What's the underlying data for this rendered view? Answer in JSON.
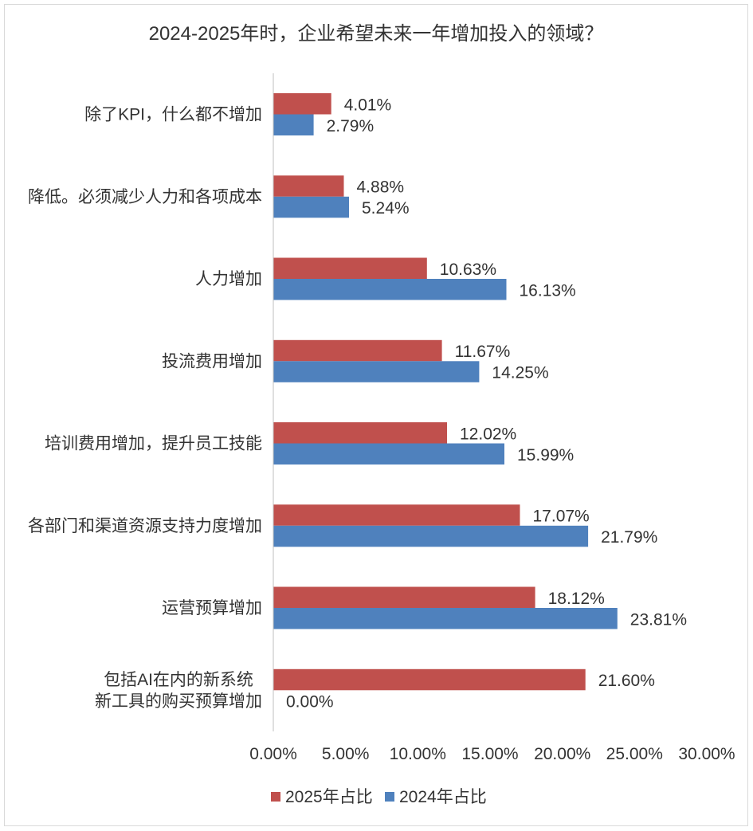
{
  "chart_data": {
    "type": "bar",
    "orientation": "horizontal",
    "title": "2024-2025年时，企业希望未来一年增加投入的领域？",
    "categories": [
      "除了KPI，什么都不增加",
      "降低。必须减少人力和各项成本",
      "人力增加",
      "投流费用增加",
      "培训费用增加，提升员工技能",
      "各部门和渠道资源支持力度增加",
      "运营预算增加",
      "包括AI在内的新系统\n新工具的购买预算增加"
    ],
    "series": [
      {
        "name": "2025年占比",
        "color": "#C0504D",
        "values": [
          4.01,
          4.88,
          10.63,
          11.67,
          12.02,
          17.07,
          18.12,
          21.6
        ],
        "labels": [
          "4.01%",
          "4.88%",
          "10.63%",
          "11.67%",
          "12.02%",
          "17.07%",
          "18.12%",
          "21.60%"
        ]
      },
      {
        "name": "2024年占比",
        "color": "#4F81BD",
        "values": [
          2.79,
          5.24,
          16.13,
          14.25,
          15.99,
          21.79,
          23.81,
          0.0
        ],
        "labels": [
          "2.79%",
          "5.24%",
          "16.13%",
          "14.25%",
          "15.99%",
          "21.79%",
          "23.81%",
          "0.00%"
        ]
      }
    ],
    "xticks": [
      0,
      5,
      10,
      15,
      20,
      25,
      30
    ],
    "xtick_labels": [
      "0.00%",
      "5.00%",
      "10.00%",
      "15.00%",
      "20.00%",
      "25.00%",
      "30.00%"
    ],
    "xlim": [
      0,
      30
    ],
    "grid": false,
    "legend": "bottom-center"
  }
}
